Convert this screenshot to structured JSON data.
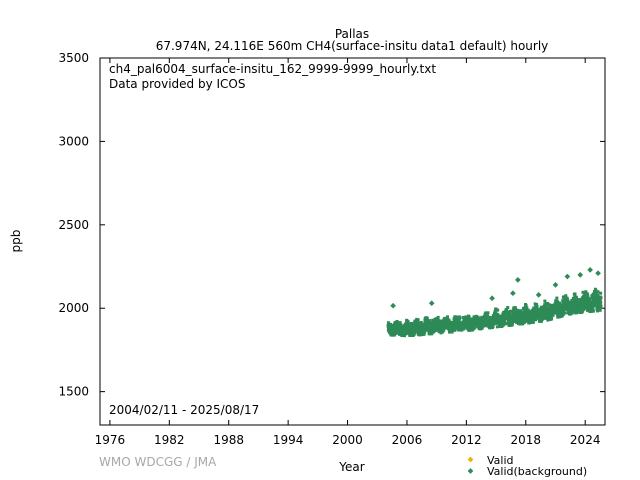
{
  "chart_data": {
    "type": "scatter",
    "title": "Pallas",
    "subtitle": "67.974N, 24.116E 560m    CH4(surface-insitu data1 default) hourly",
    "xlabel": "Year",
    "ylabel": "ppb",
    "xlim": [
      1975,
      2026
    ],
    "ylim": [
      1300,
      3500
    ],
    "xticks": [
      1976,
      1982,
      1988,
      1994,
      2000,
      2006,
      2012,
      2018,
      2024
    ],
    "yticks": [
      1500,
      2000,
      2500,
      3000,
      3500
    ],
    "annotations": [
      "ch4_pal6004_surface-insitu_162_9999-9999_hourly.txt",
      "Data provided by ICOS"
    ],
    "date_range": "2004/02/11 - 2025/08/17",
    "credit": "WMO WDCGG / JMA",
    "legend": [
      {
        "label": "Valid",
        "color": "#e8b400"
      },
      {
        "label": "Valid(background)",
        "color": "#2e8b57"
      }
    ],
    "trend": [
      {
        "year": 2004.1,
        "lo": 1840,
        "mid": 1875,
        "hi": 1930
      },
      {
        "year": 2006.0,
        "lo": 1835,
        "mid": 1875,
        "hi": 1955
      },
      {
        "year": 2008.0,
        "lo": 1845,
        "mid": 1885,
        "hi": 1965
      },
      {
        "year": 2010.0,
        "lo": 1855,
        "mid": 1895,
        "hi": 1975
      },
      {
        "year": 2012.0,
        "lo": 1865,
        "mid": 1905,
        "hi": 1980
      },
      {
        "year": 2014.0,
        "lo": 1880,
        "mid": 1920,
        "hi": 2000
      },
      {
        "year": 2016.0,
        "lo": 1895,
        "mid": 1940,
        "hi": 2030
      },
      {
        "year": 2018.0,
        "lo": 1910,
        "mid": 1955,
        "hi": 2050
      },
      {
        "year": 2020.0,
        "lo": 1925,
        "mid": 1970,
        "hi": 2060
      },
      {
        "year": 2022.0,
        "lo": 1960,
        "mid": 2010,
        "hi": 2110
      },
      {
        "year": 2024.0,
        "lo": 1980,
        "mid": 2030,
        "hi": 2140
      },
      {
        "year": 2025.6,
        "lo": 1985,
        "mid": 2040,
        "hi": 2150
      }
    ],
    "outliers": [
      {
        "year": 2004.6,
        "value": 2015
      },
      {
        "year": 2008.5,
        "value": 2030
      },
      {
        "year": 2014.6,
        "value": 2060
      },
      {
        "year": 2016.7,
        "value": 2090
      },
      {
        "year": 2017.2,
        "value": 2170
      },
      {
        "year": 2019.3,
        "value": 2080
      },
      {
        "year": 2021.0,
        "value": 2140
      },
      {
        "year": 2022.2,
        "value": 2190
      },
      {
        "year": 2023.5,
        "value": 2200
      },
      {
        "year": 2024.5,
        "value": 2230
      },
      {
        "year": 2025.3,
        "value": 2210
      }
    ]
  }
}
